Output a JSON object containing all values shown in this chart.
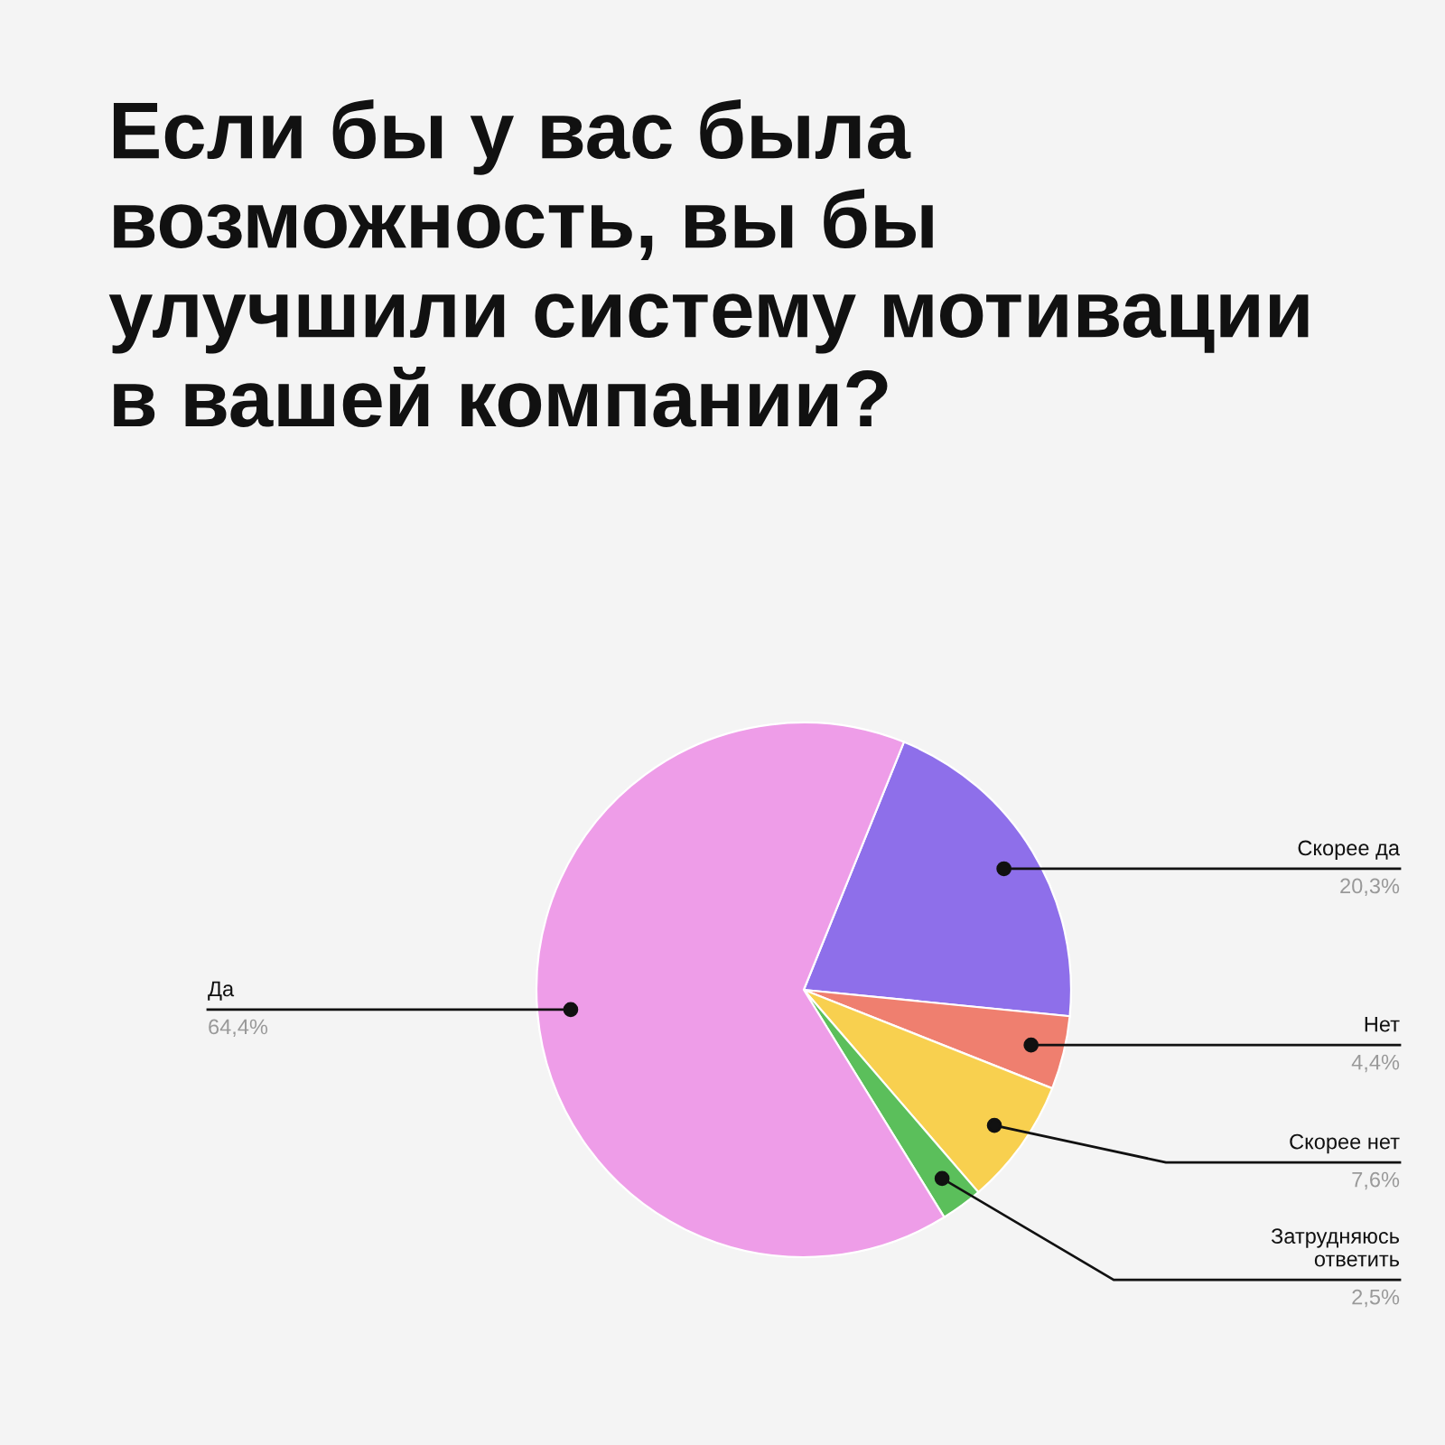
{
  "chart_data": {
    "type": "pie",
    "title": "Если бы у вас была\nвозможность, вы бы\nулучшили систему мотивации\nв вашей компании?",
    "categories": [
      "Скорее да",
      "Нет",
      "Скорее нет",
      "Затрудняюсь\nответить",
      "Да"
    ],
    "values": [
      20.3,
      4.4,
      7.6,
      2.5,
      64.4
    ],
    "value_labels": [
      "20,3%",
      "4,4%",
      "7,6%",
      "2,5%",
      "64,4%"
    ],
    "colors": [
      "#8e6fea",
      "#ef7f6f",
      "#f8d04f",
      "#5bbf5b",
      "#ee9de8"
    ],
    "legend": false
  }
}
